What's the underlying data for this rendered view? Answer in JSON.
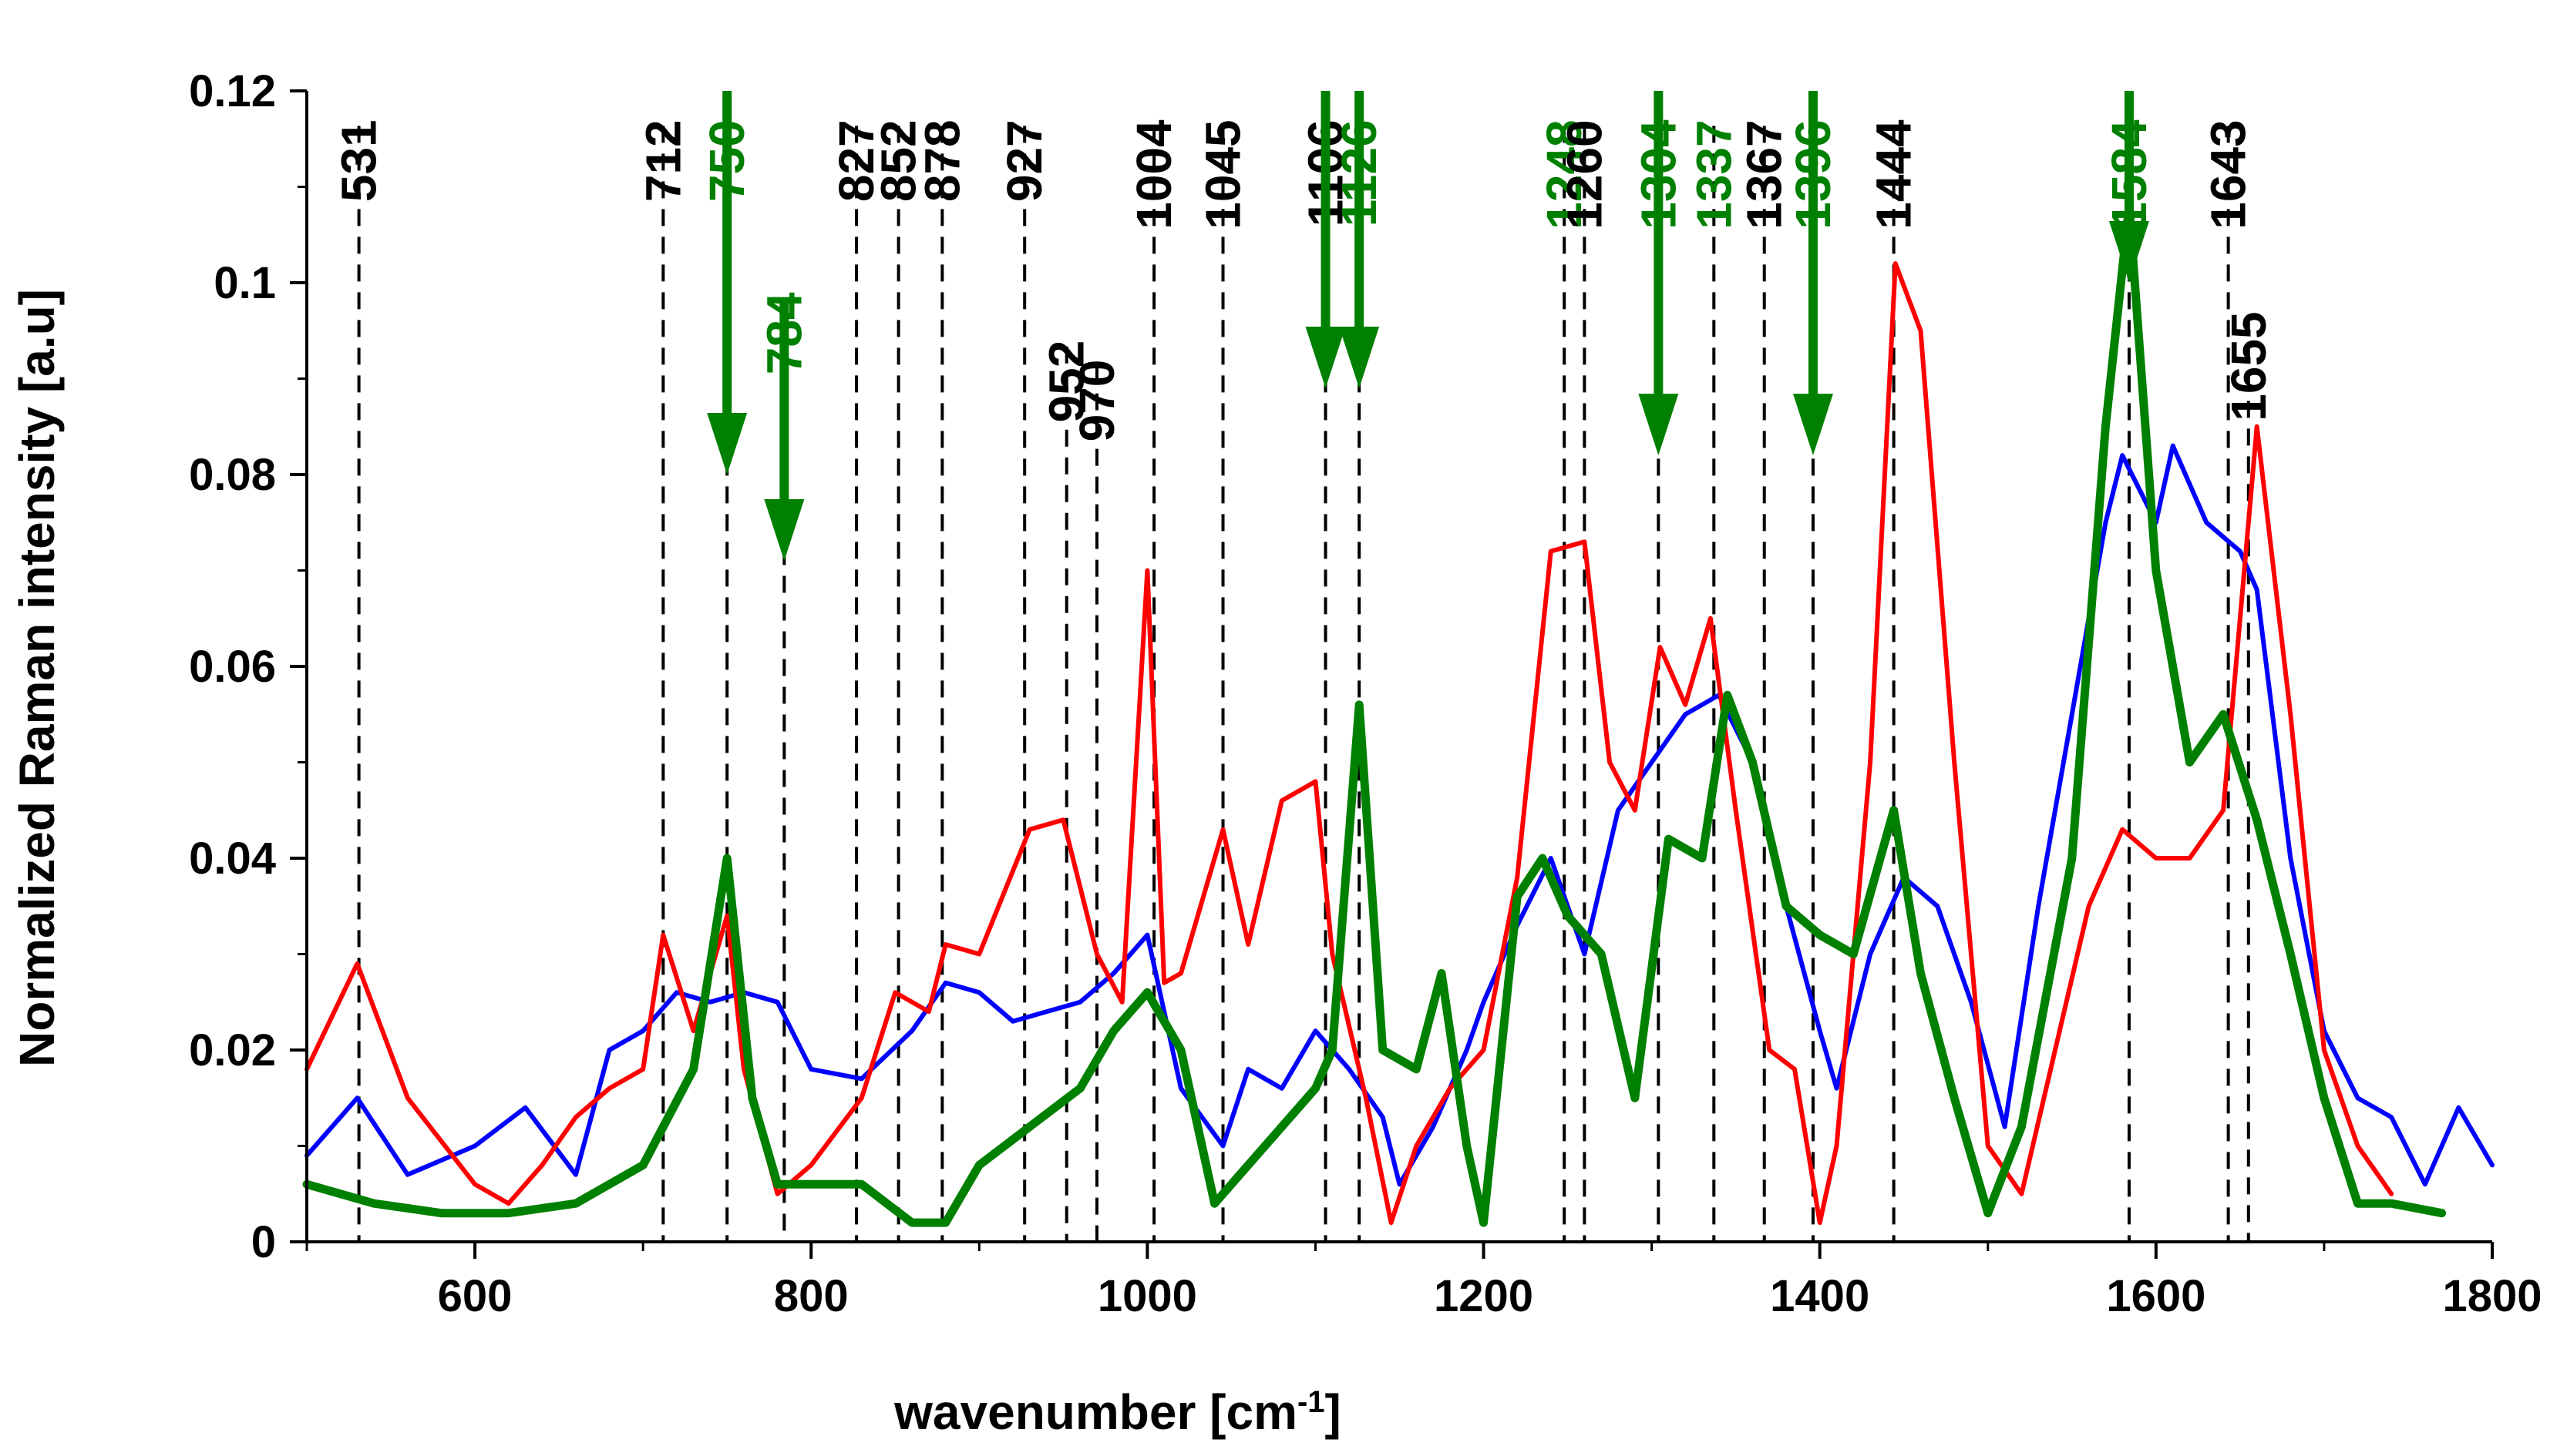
{
  "chart_data": {
    "type": "line",
    "title": "",
    "xlabel": "wavenumber [cm",
    "xlabel_sup": "-1",
    "xlabel_end": "]",
    "ylabel": "Normalized Raman intensity [a.u]",
    "xlim": [
      500,
      1800
    ],
    "ylim": [
      0,
      0.12
    ],
    "x_ticks": [
      600,
      800,
      1000,
      1200,
      1400,
      1600,
      1800
    ],
    "y_ticks": [
      0,
      0.02,
      0.04,
      0.06,
      0.08,
      0.1,
      0.12
    ],
    "x_tick_labels": [
      "600",
      "800",
      "1000",
      "1200",
      "1400",
      "1600",
      "1800"
    ],
    "y_tick_labels": [
      "0",
      "0.02",
      "0.04",
      "0.06",
      "0.08",
      "0.1",
      "0.12"
    ],
    "colors": {
      "red": "#ff0000",
      "blue": "#0000ff",
      "green": "#008000",
      "black": "#000000"
    },
    "series": [
      {
        "name": "blue",
        "color": "#0000ff",
        "x": [
          500,
          530,
          560,
          600,
          630,
          660,
          680,
          700,
          720,
          740,
          760,
          780,
          800,
          830,
          860,
          880,
          900,
          920,
          940,
          960,
          980,
          1000,
          1020,
          1045,
          1060,
          1080,
          1100,
          1120,
          1140,
          1150,
          1170,
          1190,
          1200,
          1220,
          1240,
          1260,
          1280,
          1300,
          1320,
          1340,
          1360,
          1380,
          1400,
          1410,
          1430,
          1450,
          1470,
          1490,
          1510,
          1530,
          1550,
          1570,
          1580,
          1600,
          1610,
          1630,
          1650,
          1660,
          1680,
          1700,
          1720,
          1740,
          1760,
          1780,
          1800
        ],
        "values": [
          0.009,
          0.015,
          0.007,
          0.01,
          0.014,
          0.007,
          0.02,
          0.022,
          0.026,
          0.025,
          0.026,
          0.025,
          0.018,
          0.017,
          0.022,
          0.027,
          0.026,
          0.023,
          0.024,
          0.025,
          0.028,
          0.032,
          0.016,
          0.01,
          0.018,
          0.016,
          0.022,
          0.018,
          0.013,
          0.006,
          0.012,
          0.02,
          0.025,
          0.033,
          0.04,
          0.03,
          0.045,
          0.05,
          0.055,
          0.057,
          0.05,
          0.035,
          0.022,
          0.016,
          0.03,
          0.038,
          0.035,
          0.025,
          0.012,
          0.035,
          0.055,
          0.075,
          0.082,
          0.075,
          0.083,
          0.075,
          0.072,
          0.068,
          0.04,
          0.022,
          0.015,
          0.013,
          0.006,
          0.014,
          0.008
        ]
      },
      {
        "name": "red",
        "color": "#ff0000",
        "x": [
          500,
          530,
          560,
          600,
          620,
          640,
          660,
          680,
          700,
          712,
          730,
          750,
          760,
          780,
          800,
          830,
          850,
          870,
          880,
          900,
          930,
          950,
          970,
          985,
          1000,
          1010,
          1020,
          1045,
          1060,
          1080,
          1100,
          1110,
          1130,
          1145,
          1160,
          1180,
          1200,
          1220,
          1240,
          1260,
          1275,
          1290,
          1305,
          1320,
          1335,
          1350,
          1370,
          1385,
          1400,
          1410,
          1430,
          1445,
          1460,
          1480,
          1500,
          1520,
          1540,
          1560,
          1580,
          1600,
          1620,
          1640,
          1660,
          1680,
          1700,
          1720,
          1740
        ],
        "values": [
          0.018,
          0.029,
          0.015,
          0.006,
          0.004,
          0.008,
          0.013,
          0.016,
          0.018,
          0.032,
          0.022,
          0.034,
          0.018,
          0.005,
          0.008,
          0.015,
          0.026,
          0.024,
          0.031,
          0.03,
          0.043,
          0.044,
          0.03,
          0.025,
          0.07,
          0.027,
          0.028,
          0.043,
          0.031,
          0.046,
          0.048,
          0.03,
          0.015,
          0.002,
          0.01,
          0.016,
          0.02,
          0.038,
          0.072,
          0.073,
          0.05,
          0.045,
          0.062,
          0.056,
          0.065,
          0.045,
          0.02,
          0.018,
          0.002,
          0.01,
          0.05,
          0.102,
          0.095,
          0.05,
          0.01,
          0.005,
          0.02,
          0.035,
          0.043,
          0.04,
          0.04,
          0.045,
          0.085,
          0.055,
          0.02,
          0.01,
          0.005
        ]
      },
      {
        "name": "green",
        "color": "#008000",
        "x": [
          500,
          540,
          580,
          620,
          660,
          700,
          730,
          750,
          765,
          780,
          800,
          830,
          860,
          880,
          900,
          930,
          960,
          980,
          1000,
          1020,
          1040,
          1060,
          1080,
          1100,
          1110,
          1126,
          1140,
          1160,
          1175,
          1190,
          1200,
          1220,
          1235,
          1250,
          1270,
          1290,
          1310,
          1330,
          1345,
          1360,
          1380,
          1400,
          1420,
          1444,
          1460,
          1480,
          1500,
          1520,
          1550,
          1570,
          1584,
          1600,
          1620,
          1640,
          1660,
          1680,
          1700,
          1720,
          1740,
          1770
        ],
        "values": [
          0.006,
          0.004,
          0.003,
          0.003,
          0.004,
          0.008,
          0.018,
          0.04,
          0.015,
          0.006,
          0.006,
          0.006,
          0.002,
          0.002,
          0.008,
          0.012,
          0.016,
          0.022,
          0.026,
          0.02,
          0.004,
          0.008,
          0.012,
          0.016,
          0.02,
          0.056,
          0.02,
          0.018,
          0.028,
          0.01,
          0.002,
          0.036,
          0.04,
          0.034,
          0.03,
          0.015,
          0.042,
          0.04,
          0.057,
          0.05,
          0.035,
          0.032,
          0.03,
          0.045,
          0.028,
          0.015,
          0.003,
          0.012,
          0.04,
          0.085,
          0.108,
          0.07,
          0.05,
          0.055,
          0.044,
          0.03,
          0.015,
          0.004,
          0.004,
          0.003
        ]
      }
    ],
    "reference_lines": [
      {
        "x": 531,
        "label": "531",
        "color": "#000000",
        "label_rot": -90,
        "label_y": 0.117
      },
      {
        "x": 712,
        "label": "712",
        "color": "#000000",
        "label_y": 0.117
      },
      {
        "x": 750,
        "label": "750",
        "color": "#008000",
        "label_y": 0.117
      },
      {
        "x": 784,
        "label": "784",
        "color": "#008000",
        "label_y": 0.099
      },
      {
        "x": 827,
        "label": "827",
        "color": "#000000",
        "label_y": 0.117
      },
      {
        "x": 852,
        "label": "852",
        "color": "#000000",
        "label_y": 0.117
      },
      {
        "x": 878,
        "label": "878",
        "color": "#000000",
        "label_y": 0.117
      },
      {
        "x": 927,
        "label": "927",
        "color": "#000000",
        "label_y": 0.117
      },
      {
        "x": 952,
        "label": "952",
        "color": "#000000",
        "label_y": 0.094
      },
      {
        "x": 970,
        "label": "970",
        "color": "#000000",
        "label_y": 0.092
      },
      {
        "x": 1004,
        "label": "1004",
        "color": "#000000",
        "label_y": 0.117
      },
      {
        "x": 1045,
        "label": "1045",
        "color": "#000000",
        "label_y": 0.117
      },
      {
        "x": 1106,
        "label": "1106",
        "color": "#000000",
        "label_y": 0.117
      },
      {
        "x": 1126,
        "label": "1126",
        "color": "#008000",
        "label_y": 0.117
      },
      {
        "x": 1248,
        "label": "1248",
        "color": "#008000",
        "label_y": 0.117
      },
      {
        "x": 1260,
        "label": "1260",
        "color": "#000000",
        "label_y": 0.117
      },
      {
        "x": 1304,
        "label": "1304",
        "color": "#008000",
        "label_y": 0.117
      },
      {
        "x": 1337,
        "label": "1337",
        "color": "#008000",
        "label_y": 0.117
      },
      {
        "x": 1367,
        "label": "1367",
        "color": "#000000",
        "label_y": 0.117
      },
      {
        "x": 1396,
        "label": "1396",
        "color": "#008000",
        "label_y": 0.117
      },
      {
        "x": 1444,
        "label": "1444",
        "color": "#000000",
        "label_y": 0.117
      },
      {
        "x": 1584,
        "label": "1584",
        "color": "#008000",
        "label_y": 0.117
      },
      {
        "x": 1643,
        "label": "1643",
        "color": "#000000",
        "label_y": 0.117
      },
      {
        "x": 1655,
        "label": "1655",
        "color": "#000000",
        "label_y": 0.097
      }
    ],
    "arrows": [
      {
        "x": 750,
        "y_top": 0.12,
        "y_tip": 0.08
      },
      {
        "x": 784,
        "y_top": 0.098,
        "y_tip": 0.071
      },
      {
        "x": 1106,
        "y_top": 0.12,
        "y_tip": 0.089
      },
      {
        "x": 1126,
        "y_top": 0.12,
        "y_tip": 0.089
      },
      {
        "x": 1304,
        "y_top": 0.12,
        "y_tip": 0.082
      },
      {
        "x": 1396,
        "y_top": 0.12,
        "y_tip": 0.082
      },
      {
        "x": 1584,
        "y_top": 0.12,
        "y_tip": 0.1
      }
    ]
  }
}
